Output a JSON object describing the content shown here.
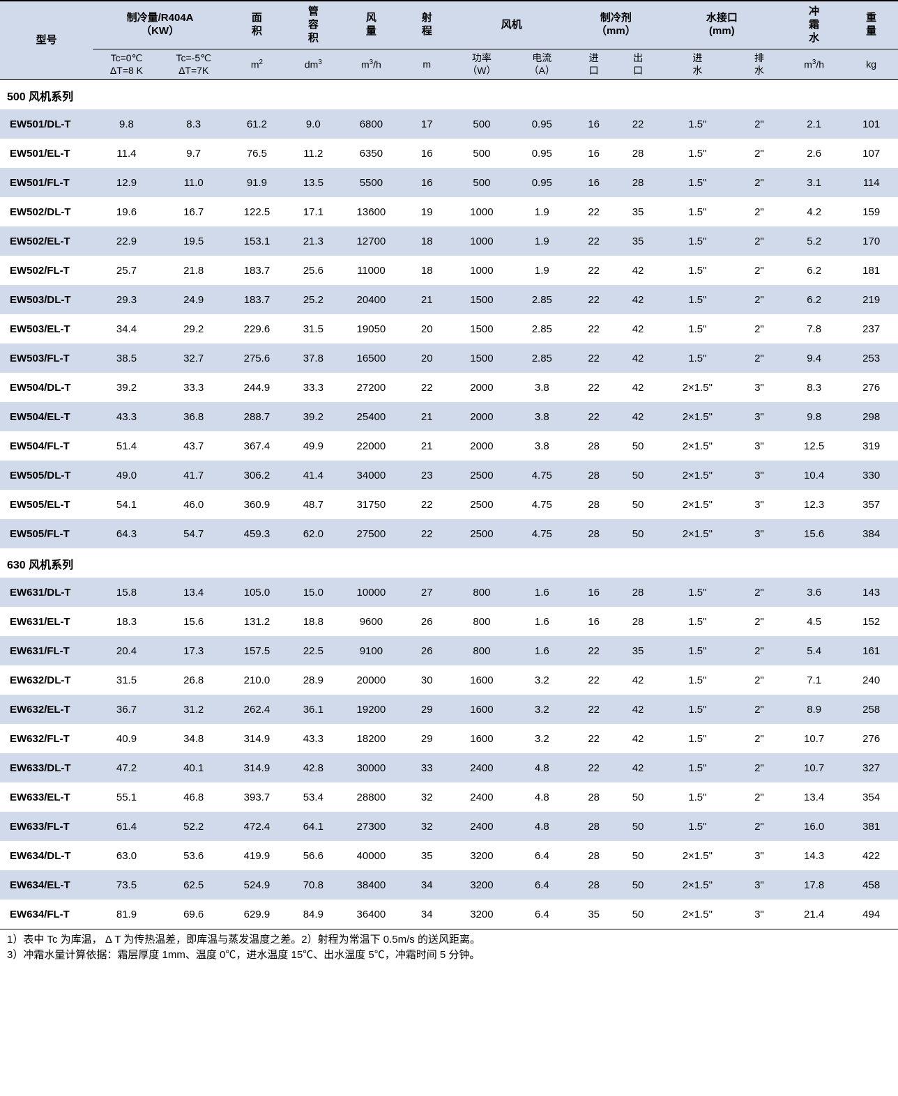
{
  "header": {
    "model": "型号",
    "capacity": "制冷量/R404A<br>（KW）",
    "area": "面<br>积",
    "tube": "管<br>容<br>积",
    "airflow": "风<br>量",
    "throw": "射<br>程",
    "fan": "风机",
    "refrigerant": "制冷剂<br>（mm）",
    "water": "水接口<br>(mm)",
    "defrost": "冲<br>霜<br>水",
    "weight": "重<br>量",
    "sub": {
      "tc0": "Tc=0℃<br>ΔT=8 K",
      "tc5": "Tc=-5℃<br>ΔT=7K",
      "m2": "m<sup>2</sup>",
      "dm3": "dm<sup>3</sup>",
      "m3h": "m<sup>3</sup>/h",
      "m": "m",
      "power": "功率<br>（W）",
      "current": "电流<br>（A）",
      "inlet": "进<br>口",
      "outlet": "出<br>口",
      "win": "进<br>水",
      "wout": "排<br>水",
      "m3h2": "m<sup>3</sup>/h",
      "kg": "kg"
    }
  },
  "section1": "500 风机系列",
  "section2": "630 风机系列",
  "rows1": [
    {
      "m": "EW501/DL-T",
      "a": "9.8",
      "b": "8.3",
      "c": "61.2",
      "d": "9.0",
      "e": "6800",
      "f": "17",
      "g": "500",
      "h": "0.95",
      "i": "16",
      "j": "22",
      "k": "1.5\"",
      "l": "2\"",
      "n": "2.1",
      "o": "101"
    },
    {
      "m": "EW501/EL-T",
      "a": "11.4",
      "b": "9.7",
      "c": "76.5",
      "d": "11.2",
      "e": "6350",
      "f": "16",
      "g": "500",
      "h": "0.95",
      "i": "16",
      "j": "28",
      "k": "1.5\"",
      "l": "2\"",
      "n": "2.6",
      "o": "107"
    },
    {
      "m": "EW501/FL-T",
      "a": "12.9",
      "b": "11.0",
      "c": "91.9",
      "d": "13.5",
      "e": "5500",
      "f": "16",
      "g": "500",
      "h": "0.95",
      "i": "16",
      "j": "28",
      "k": "1.5\"",
      "l": "2\"",
      "n": "3.1",
      "o": "114"
    },
    {
      "m": "EW502/DL-T",
      "a": "19.6",
      "b": "16.7",
      "c": "122.5",
      "d": "17.1",
      "e": "13600",
      "f": "19",
      "g": "1000",
      "h": "1.9",
      "i": "22",
      "j": "35",
      "k": "1.5\"",
      "l": "2\"",
      "n": "4.2",
      "o": "159"
    },
    {
      "m": "EW502/EL-T",
      "a": "22.9",
      "b": "19.5",
      "c": "153.1",
      "d": "21.3",
      "e": "12700",
      "f": "18",
      "g": "1000",
      "h": "1.9",
      "i": "22",
      "j": "35",
      "k": "1.5\"",
      "l": "2\"",
      "n": "5.2",
      "o": "170"
    },
    {
      "m": "EW502/FL-T",
      "a": "25.7",
      "b": "21.8",
      "c": "183.7",
      "d": "25.6",
      "e": "11000",
      "f": "18",
      "g": "1000",
      "h": "1.9",
      "i": "22",
      "j": "42",
      "k": "1.5\"",
      "l": "2\"",
      "n": "6.2",
      "o": "181"
    },
    {
      "m": "EW503/DL-T",
      "a": "29.3",
      "b": "24.9",
      "c": "183.7",
      "d": "25.2",
      "e": "20400",
      "f": "21",
      "g": "1500",
      "h": "2.85",
      "i": "22",
      "j": "42",
      "k": "1.5\"",
      "l": "2\"",
      "n": "6.2",
      "o": "219"
    },
    {
      "m": "EW503/EL-T",
      "a": "34.4",
      "b": "29.2",
      "c": "229.6",
      "d": "31.5",
      "e": "19050",
      "f": "20",
      "g": "1500",
      "h": "2.85",
      "i": "22",
      "j": "42",
      "k": "1.5\"",
      "l": "2\"",
      "n": "7.8",
      "o": "237"
    },
    {
      "m": "EW503/FL-T",
      "a": "38.5",
      "b": "32.7",
      "c": "275.6",
      "d": "37.8",
      "e": "16500",
      "f": "20",
      "g": "1500",
      "h": "2.85",
      "i": "22",
      "j": "42",
      "k": "1.5\"",
      "l": "2\"",
      "n": "9.4",
      "o": "253"
    },
    {
      "m": "EW504/DL-T",
      "a": "39.2",
      "b": "33.3",
      "c": "244.9",
      "d": "33.3",
      "e": "27200",
      "f": "22",
      "g": "2000",
      "h": "3.8",
      "i": "22",
      "j": "42",
      "k": "2×1.5\"",
      "l": "3\"",
      "n": "8.3",
      "o": "276"
    },
    {
      "m": "EW504/EL-T",
      "a": "43.3",
      "b": "36.8",
      "c": "288.7",
      "d": "39.2",
      "e": "25400",
      "f": "21",
      "g": "2000",
      "h": "3.8",
      "i": "22",
      "j": "42",
      "k": "2×1.5\"",
      "l": "3\"",
      "n": "9.8",
      "o": "298"
    },
    {
      "m": "EW504/FL-T",
      "a": "51.4",
      "b": "43.7",
      "c": "367.4",
      "d": "49.9",
      "e": "22000",
      "f": "21",
      "g": "2000",
      "h": "3.8",
      "i": "28",
      "j": "50",
      "k": "2×1.5\"",
      "l": "3\"",
      "n": "12.5",
      "o": "319"
    },
    {
      "m": "EW505/DL-T",
      "a": "49.0",
      "b": "41.7",
      "c": "306.2",
      "d": "41.4",
      "e": "34000",
      "f": "23",
      "g": "2500",
      "h": "4.75",
      "i": "28",
      "j": "50",
      "k": "2×1.5\"",
      "l": "3\"",
      "n": "10.4",
      "o": "330"
    },
    {
      "m": "EW505/EL-T",
      "a": "54.1",
      "b": "46.0",
      "c": "360.9",
      "d": "48.7",
      "e": "31750",
      "f": "22",
      "g": "2500",
      "h": "4.75",
      "i": "28",
      "j": "50",
      "k": "2×1.5\"",
      "l": "3\"",
      "n": "12.3",
      "o": "357"
    },
    {
      "m": "EW505/FL-T",
      "a": "64.3",
      "b": "54.7",
      "c": "459.3",
      "d": "62.0",
      "e": "27500",
      "f": "22",
      "g": "2500",
      "h": "4.75",
      "i": "28",
      "j": "50",
      "k": "2×1.5\"",
      "l": "3\"",
      "n": "15.6",
      "o": "384"
    }
  ],
  "rows2": [
    {
      "m": "EW631/DL-T",
      "a": "15.8",
      "b": "13.4",
      "c": "105.0",
      "d": "15.0",
      "e": "10000",
      "f": "27",
      "g": "800",
      "h": "1.6",
      "i": "16",
      "j": "28",
      "k": "1.5\"",
      "l": "2\"",
      "n": "3.6",
      "o": "143"
    },
    {
      "m": "EW631/EL-T",
      "a": "18.3",
      "b": "15.6",
      "c": "131.2",
      "d": "18.8",
      "e": "9600",
      "f": "26",
      "g": "800",
      "h": "1.6",
      "i": "16",
      "j": "28",
      "k": "1.5\"",
      "l": "2\"",
      "n": "4.5",
      "o": "152"
    },
    {
      "m": "EW631/FL-T",
      "a": "20.4",
      "b": "17.3",
      "c": "157.5",
      "d": "22.5",
      "e": "9100",
      "f": "26",
      "g": "800",
      "h": "1.6",
      "i": "22",
      "j": "35",
      "k": "1.5\"",
      "l": "2\"",
      "n": "5.4",
      "o": "161"
    },
    {
      "m": "EW632/DL-T",
      "a": "31.5",
      "b": "26.8",
      "c": "210.0",
      "d": "28.9",
      "e": "20000",
      "f": "30",
      "g": "1600",
      "h": "3.2",
      "i": "22",
      "j": "42",
      "k": "1.5\"",
      "l": "2\"",
      "n": "7.1",
      "o": "240"
    },
    {
      "m": "EW632/EL-T",
      "a": "36.7",
      "b": "31.2",
      "c": "262.4",
      "d": "36.1",
      "e": "19200",
      "f": "29",
      "g": "1600",
      "h": "3.2",
      "i": "22",
      "j": "42",
      "k": "1.5\"",
      "l": "2\"",
      "n": "8.9",
      "o": "258"
    },
    {
      "m": "EW632/FL-T",
      "a": "40.9",
      "b": "34.8",
      "c": "314.9",
      "d": "43.3",
      "e": "18200",
      "f": "29",
      "g": "1600",
      "h": "3.2",
      "i": "22",
      "j": "42",
      "k": "1.5\"",
      "l": "2\"",
      "n": "10.7",
      "o": "276"
    },
    {
      "m": "EW633/DL-T",
      "a": "47.2",
      "b": "40.1",
      "c": "314.9",
      "d": "42.8",
      "e": "30000",
      "f": "33",
      "g": "2400",
      "h": "4.8",
      "i": "22",
      "j": "42",
      "k": "1.5\"",
      "l": "2\"",
      "n": "10.7",
      "o": "327"
    },
    {
      "m": "EW633/EL-T",
      "a": "55.1",
      "b": "46.8",
      "c": "393.7",
      "d": "53.4",
      "e": "28800",
      "f": "32",
      "g": "2400",
      "h": "4.8",
      "i": "28",
      "j": "50",
      "k": "1.5\"",
      "l": "2\"",
      "n": "13.4",
      "o": "354"
    },
    {
      "m": "EW633/FL-T",
      "a": "61.4",
      "b": "52.2",
      "c": "472.4",
      "d": "64.1",
      "e": "27300",
      "f": "32",
      "g": "2400",
      "h": "4.8",
      "i": "28",
      "j": "50",
      "k": "1.5\"",
      "l": "2\"",
      "n": "16.0",
      "o": "381"
    },
    {
      "m": "EW634/DL-T",
      "a": "63.0",
      "b": "53.6",
      "c": "419.9",
      "d": "56.6",
      "e": "40000",
      "f": "35",
      "g": "3200",
      "h": "6.4",
      "i": "28",
      "j": "50",
      "k": "2×1.5\"",
      "l": "3\"",
      "n": "14.3",
      "o": "422"
    },
    {
      "m": "EW634/EL-T",
      "a": "73.5",
      "b": "62.5",
      "c": "524.9",
      "d": "70.8",
      "e": "38400",
      "f": "34",
      "g": "3200",
      "h": "6.4",
      "i": "28",
      "j": "50",
      "k": "2×1.5\"",
      "l": "3\"",
      "n": "17.8",
      "o": "458"
    },
    {
      "m": "EW634/FL-T",
      "a": "81.9",
      "b": "69.6",
      "c": "629.9",
      "d": "84.9",
      "e": "36400",
      "f": "34",
      "g": "3200",
      "h": "6.4",
      "i": "35",
      "j": "50",
      "k": "2×1.5\"",
      "l": "3\"",
      "n": "21.4",
      "o": "494"
    }
  ],
  "footnotes": "1）表中 Tc 为库温， Δ T 为传热温差，即库温与蒸发温度之差。2）射程为常温下 0.5m/s 的送风距离。<br>3）冲霜水量计算依据：霜层厚度 1mm、温度 0℃，进水温度 15℃、出水温度 5℃，冲霜时间 5 分钟。",
  "colors": {
    "band": "#d1daea",
    "border": "#000000",
    "bg": "#ffffff"
  }
}
